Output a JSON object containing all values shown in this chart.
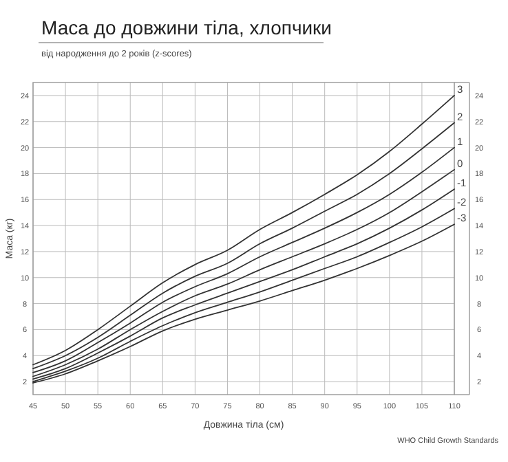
{
  "chart_data": {
    "type": "line",
    "title": "Маса до довжини тіла, хлопчики",
    "subtitle": "від народження до 2 років (z-scores)",
    "xlabel": "Довжина тіла (см)",
    "ylabel": "Маса (кг)",
    "annotations": [
      "WHO Child Growth Standards"
    ],
    "x": [
      45,
      50,
      55,
      60,
      65,
      70,
      75,
      80,
      85,
      90,
      95,
      100,
      105,
      110
    ],
    "xlim": [
      45,
      110
    ],
    "xticks": [
      45,
      50,
      55,
      60,
      65,
      70,
      75,
      80,
      85,
      90,
      95,
      100,
      105,
      110
    ],
    "ylim": [
      1,
      25
    ],
    "yticks": [
      2,
      4,
      6,
      8,
      10,
      12,
      14,
      16,
      18,
      20,
      22,
      24
    ],
    "y2lim": [
      1,
      25
    ],
    "y2ticks": [
      2,
      4,
      6,
      8,
      10,
      12,
      14,
      16,
      18,
      20,
      22,
      24
    ],
    "grid": true,
    "marker": "none",
    "line_style": "solid",
    "series": [
      {
        "name": "3",
        "color": "#333333",
        "values": [
          3.3,
          4.4,
          6.0,
          7.8,
          9.6,
          11.0,
          12.1,
          13.7,
          15.0,
          16.4,
          17.9,
          19.7,
          21.8,
          24.0
        ]
      },
      {
        "name": "2",
        "color": "#333333",
        "values": [
          3.0,
          4.0,
          5.4,
          7.1,
          8.8,
          10.1,
          11.1,
          12.6,
          13.8,
          15.1,
          16.4,
          18.0,
          19.9,
          21.9
        ]
      },
      {
        "name": "1",
        "color": "#333333",
        "values": [
          2.7,
          3.6,
          5.0,
          6.5,
          8.1,
          9.3,
          10.3,
          11.6,
          12.7,
          13.8,
          15.0,
          16.4,
          18.1,
          20.0
        ]
      },
      {
        "name": "0",
        "color": "#333333",
        "values": [
          2.4,
          3.3,
          4.5,
          6.0,
          7.4,
          8.6,
          9.5,
          10.6,
          11.6,
          12.6,
          13.7,
          15.0,
          16.6,
          18.3
        ]
      },
      {
        "name": "-1",
        "color": "#333333",
        "values": [
          2.2,
          3.0,
          4.2,
          5.5,
          6.9,
          7.9,
          8.8,
          9.7,
          10.6,
          11.6,
          12.6,
          13.8,
          15.2,
          16.8
        ]
      },
      {
        "name": "-2",
        "color": "#333333",
        "values": [
          2.0,
          2.8,
          3.8,
          5.1,
          6.3,
          7.3,
          8.1,
          8.9,
          9.8,
          10.7,
          11.6,
          12.7,
          13.9,
          15.3
        ]
      },
      {
        "name": "-3",
        "color": "#333333",
        "values": [
          1.9,
          2.6,
          3.6,
          4.7,
          5.9,
          6.8,
          7.5,
          8.2,
          9.0,
          9.8,
          10.7,
          11.7,
          12.8,
          14.1
        ]
      }
    ]
  }
}
